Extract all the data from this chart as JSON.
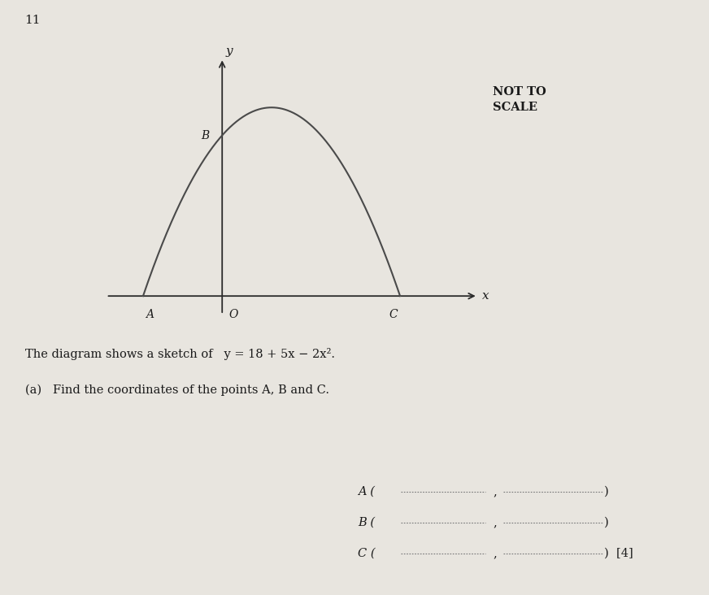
{
  "background_color": "#e8e5df",
  "page_number": "11",
  "not_to_scale_text": "NOT TO\nSCALE",
  "equation_display": "y = 18 + 5x − 2x²",
  "question_text": "The diagram shows a sketch of   y = 18 + 5x − 2x².",
  "part_a_text": "(a)   Find the coordinates of the points A, B and C.",
  "curve_color": "#4a4a4a",
  "axis_color": "#2a2a2a",
  "label_color": "#1a1a1a",
  "text_color": "#1a1a1a"
}
